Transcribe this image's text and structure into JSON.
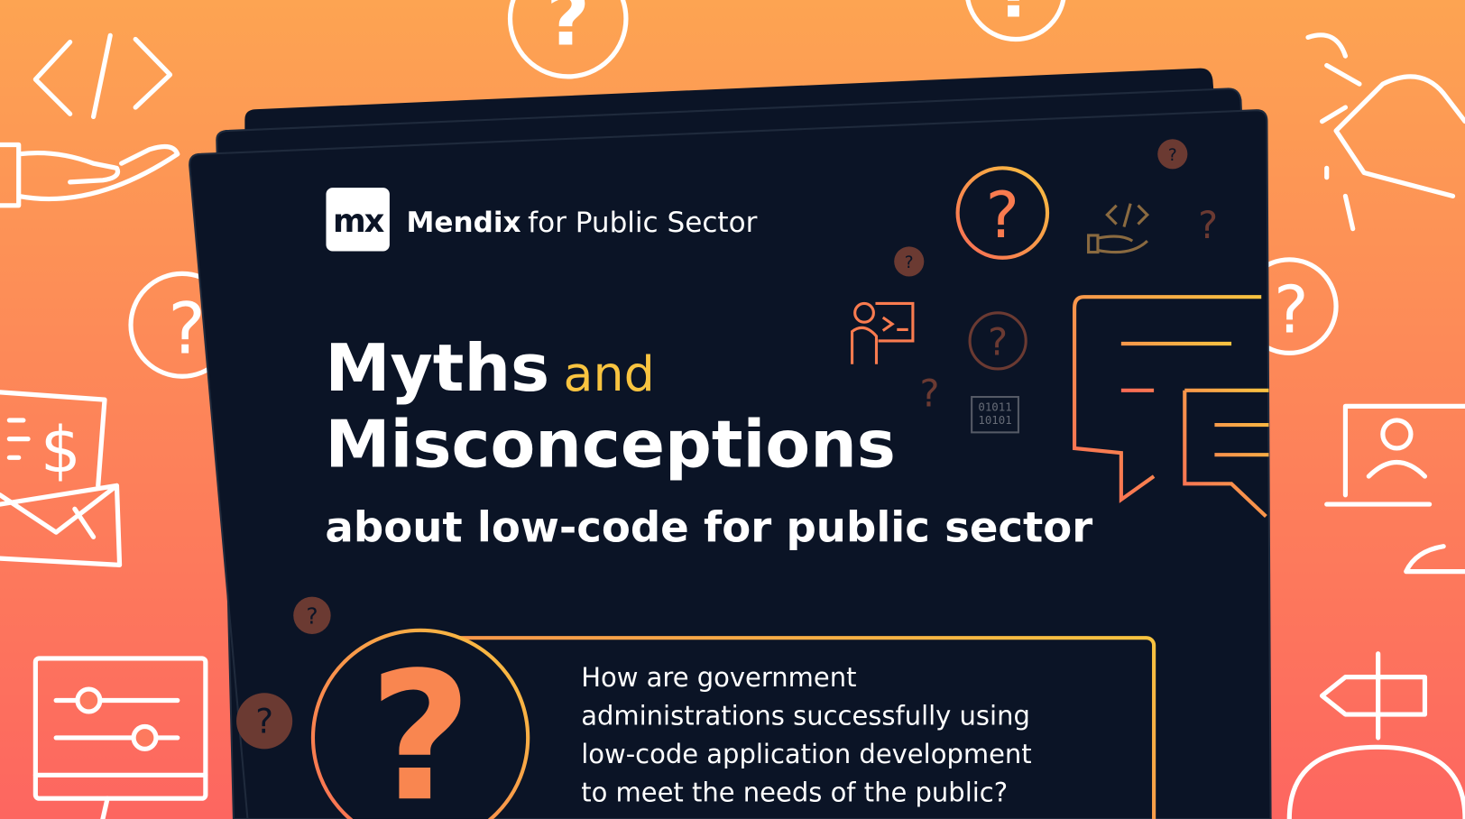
{
  "brand": {
    "logo_text": "mx",
    "name": "Mendix",
    "tagline": "for Public Sector"
  },
  "headline": {
    "line1": "Myths",
    "connector": "and",
    "line2": "Misconceptions",
    "subtitle": "about low-code for public sector"
  },
  "question_box": {
    "lines": [
      "How are government",
      "administrations successfully using",
      "low-code application development",
      "to meet the needs of the public?"
    ]
  },
  "icon_glyphs": {
    "question": "?",
    "binary1": "01011",
    "binary2": "10101"
  },
  "colors": {
    "bg_top": "#fda452",
    "bg_bottom": "#fd6660",
    "card": "#0b1426",
    "accent_yellow": "#f9c440",
    "accent_orange": "#f97b4f"
  }
}
